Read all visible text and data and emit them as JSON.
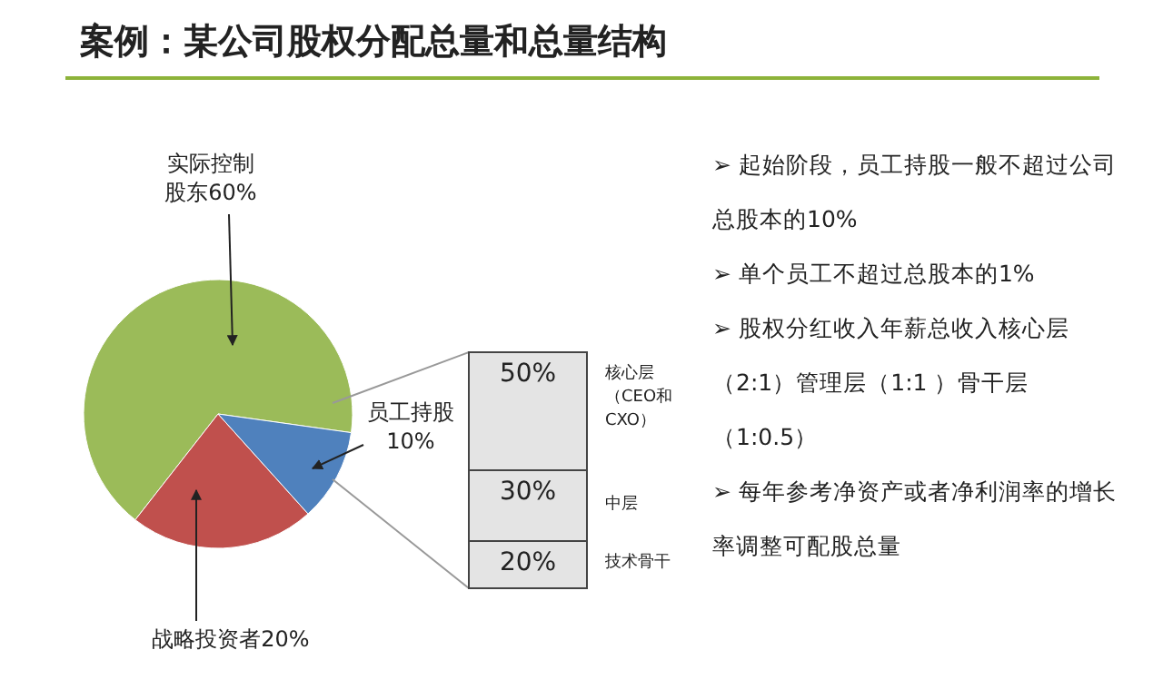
{
  "chart_data": [
    {
      "type": "pie",
      "title": "案例：某公司股权分配总量和总量结构",
      "categories": [
        "实际控制股东",
        "战略投资者",
        "员工持股"
      ],
      "values": [
        60,
        20,
        10
      ],
      "value_labels": [
        "60%",
        "20%",
        "10%"
      ],
      "colors": [
        "#9bbb59",
        "#c0504d",
        "#4f81bd"
      ]
    },
    {
      "type": "bar",
      "stacked": true,
      "categories": [
        null
      ],
      "series": [
        {
          "name": "技术骨干",
          "color": "#e4e4e4",
          "values": [
            20
          ],
          "value_labels": [
            "20%"
          ]
        },
        {
          "name": "中层",
          "color": "#e4e4e4",
          "values": [
            30
          ],
          "value_labels": [
            "30%"
          ]
        },
        {
          "name": "核心层（CEO和CXO）",
          "color": "#e4e4e4",
          "values": [
            50
          ],
          "value_labels": [
            "50%"
          ]
        }
      ]
    },
    {
      "type": "other",
      "annotations": [
        "➢ 起始阶段，员工持股一般不超过公司总股本的10%",
        "➢ 单个员工不超过总股本的1%",
        "➢ 股权分红收入年薪总收入核心层（2:1）管理层（1:1 ）骨干层（1:0.5）",
        "➢ 每年参考净资产或者净利润率的增长率调整可配股总量"
      ]
    }
  ]
}
